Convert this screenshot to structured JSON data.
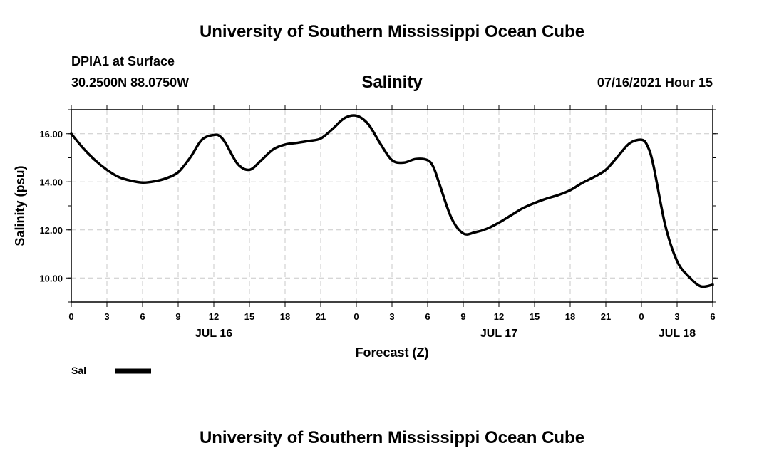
{
  "header": {
    "title": "University of Southern Mississippi Ocean Cube",
    "station": "DPIA1 at Surface",
    "coords": "30.2500N  88.0750W",
    "timestamp": "07/16/2021 Hour 15"
  },
  "footer": {
    "title": "University of Southern Mississippi Ocean Cube"
  },
  "colors": {
    "line": "#000000",
    "grid": "#c8c8c8"
  },
  "chart_data": {
    "type": "line",
    "title": "Salinity",
    "xlabel": "Forecast (Z)",
    "ylabel": "Salinity (psu)",
    "xlim": [
      0,
      54
    ],
    "ylim": [
      9.0,
      17.0
    ],
    "grid": true,
    "x_ticks": [
      {
        "v": 0,
        "label": "0"
      },
      {
        "v": 3,
        "label": "3"
      },
      {
        "v": 6,
        "label": "6"
      },
      {
        "v": 9,
        "label": "9"
      },
      {
        "v": 12,
        "label": "12"
      },
      {
        "v": 15,
        "label": "15"
      },
      {
        "v": 18,
        "label": "18"
      },
      {
        "v": 21,
        "label": "21"
      },
      {
        "v": 24,
        "label": "0"
      },
      {
        "v": 27,
        "label": "3"
      },
      {
        "v": 30,
        "label": "6"
      },
      {
        "v": 33,
        "label": "9"
      },
      {
        "v": 36,
        "label": "12"
      },
      {
        "v": 39,
        "label": "15"
      },
      {
        "v": 42,
        "label": "18"
      },
      {
        "v": 45,
        "label": "21"
      },
      {
        "v": 48,
        "label": "0"
      },
      {
        "v": 51,
        "label": "3"
      },
      {
        "v": 54,
        "label": "6"
      }
    ],
    "day_labels": [
      {
        "v": 12,
        "label": "JUL 16"
      },
      {
        "v": 36,
        "label": "JUL 17"
      },
      {
        "v": 51,
        "label": "JUL 18"
      }
    ],
    "y_ticks": [
      {
        "v": 10,
        "label": "10.00"
      },
      {
        "v": 12,
        "label": "12.00"
      },
      {
        "v": 14,
        "label": "14.00"
      },
      {
        "v": 16,
        "label": "16.00"
      }
    ],
    "series": [
      {
        "name": "Sal",
        "x": [
          0,
          1,
          2,
          3,
          4,
          5,
          6,
          7,
          8,
          9,
          10,
          11,
          12,
          12.5,
          13,
          14,
          15,
          16,
          17,
          18,
          19,
          20,
          21,
          22,
          23,
          24,
          25,
          26,
          27,
          28,
          29,
          30,
          30.5,
          31,
          32,
          33,
          34,
          35,
          36,
          37,
          38,
          39,
          40,
          41,
          42,
          43,
          44,
          45,
          46,
          47,
          48,
          48.5,
          49,
          50,
          51,
          52,
          53,
          54
        ],
        "values": [
          16.0,
          15.4,
          14.9,
          14.5,
          14.2,
          14.05,
          13.97,
          14.02,
          14.15,
          14.4,
          15.0,
          15.75,
          15.95,
          15.9,
          15.6,
          14.75,
          14.5,
          14.9,
          15.35,
          15.55,
          15.62,
          15.7,
          15.8,
          16.2,
          16.65,
          16.75,
          16.4,
          15.6,
          14.9,
          14.8,
          14.95,
          14.9,
          14.6,
          13.9,
          12.5,
          11.85,
          11.9,
          12.05,
          12.3,
          12.6,
          12.9,
          13.12,
          13.3,
          13.45,
          13.65,
          13.95,
          14.2,
          14.5,
          15.05,
          15.6,
          15.75,
          15.5,
          14.7,
          12.2,
          10.7,
          10.05,
          9.65,
          9.72
        ]
      }
    ],
    "legend": [
      {
        "name": "Sal"
      }
    ]
  }
}
